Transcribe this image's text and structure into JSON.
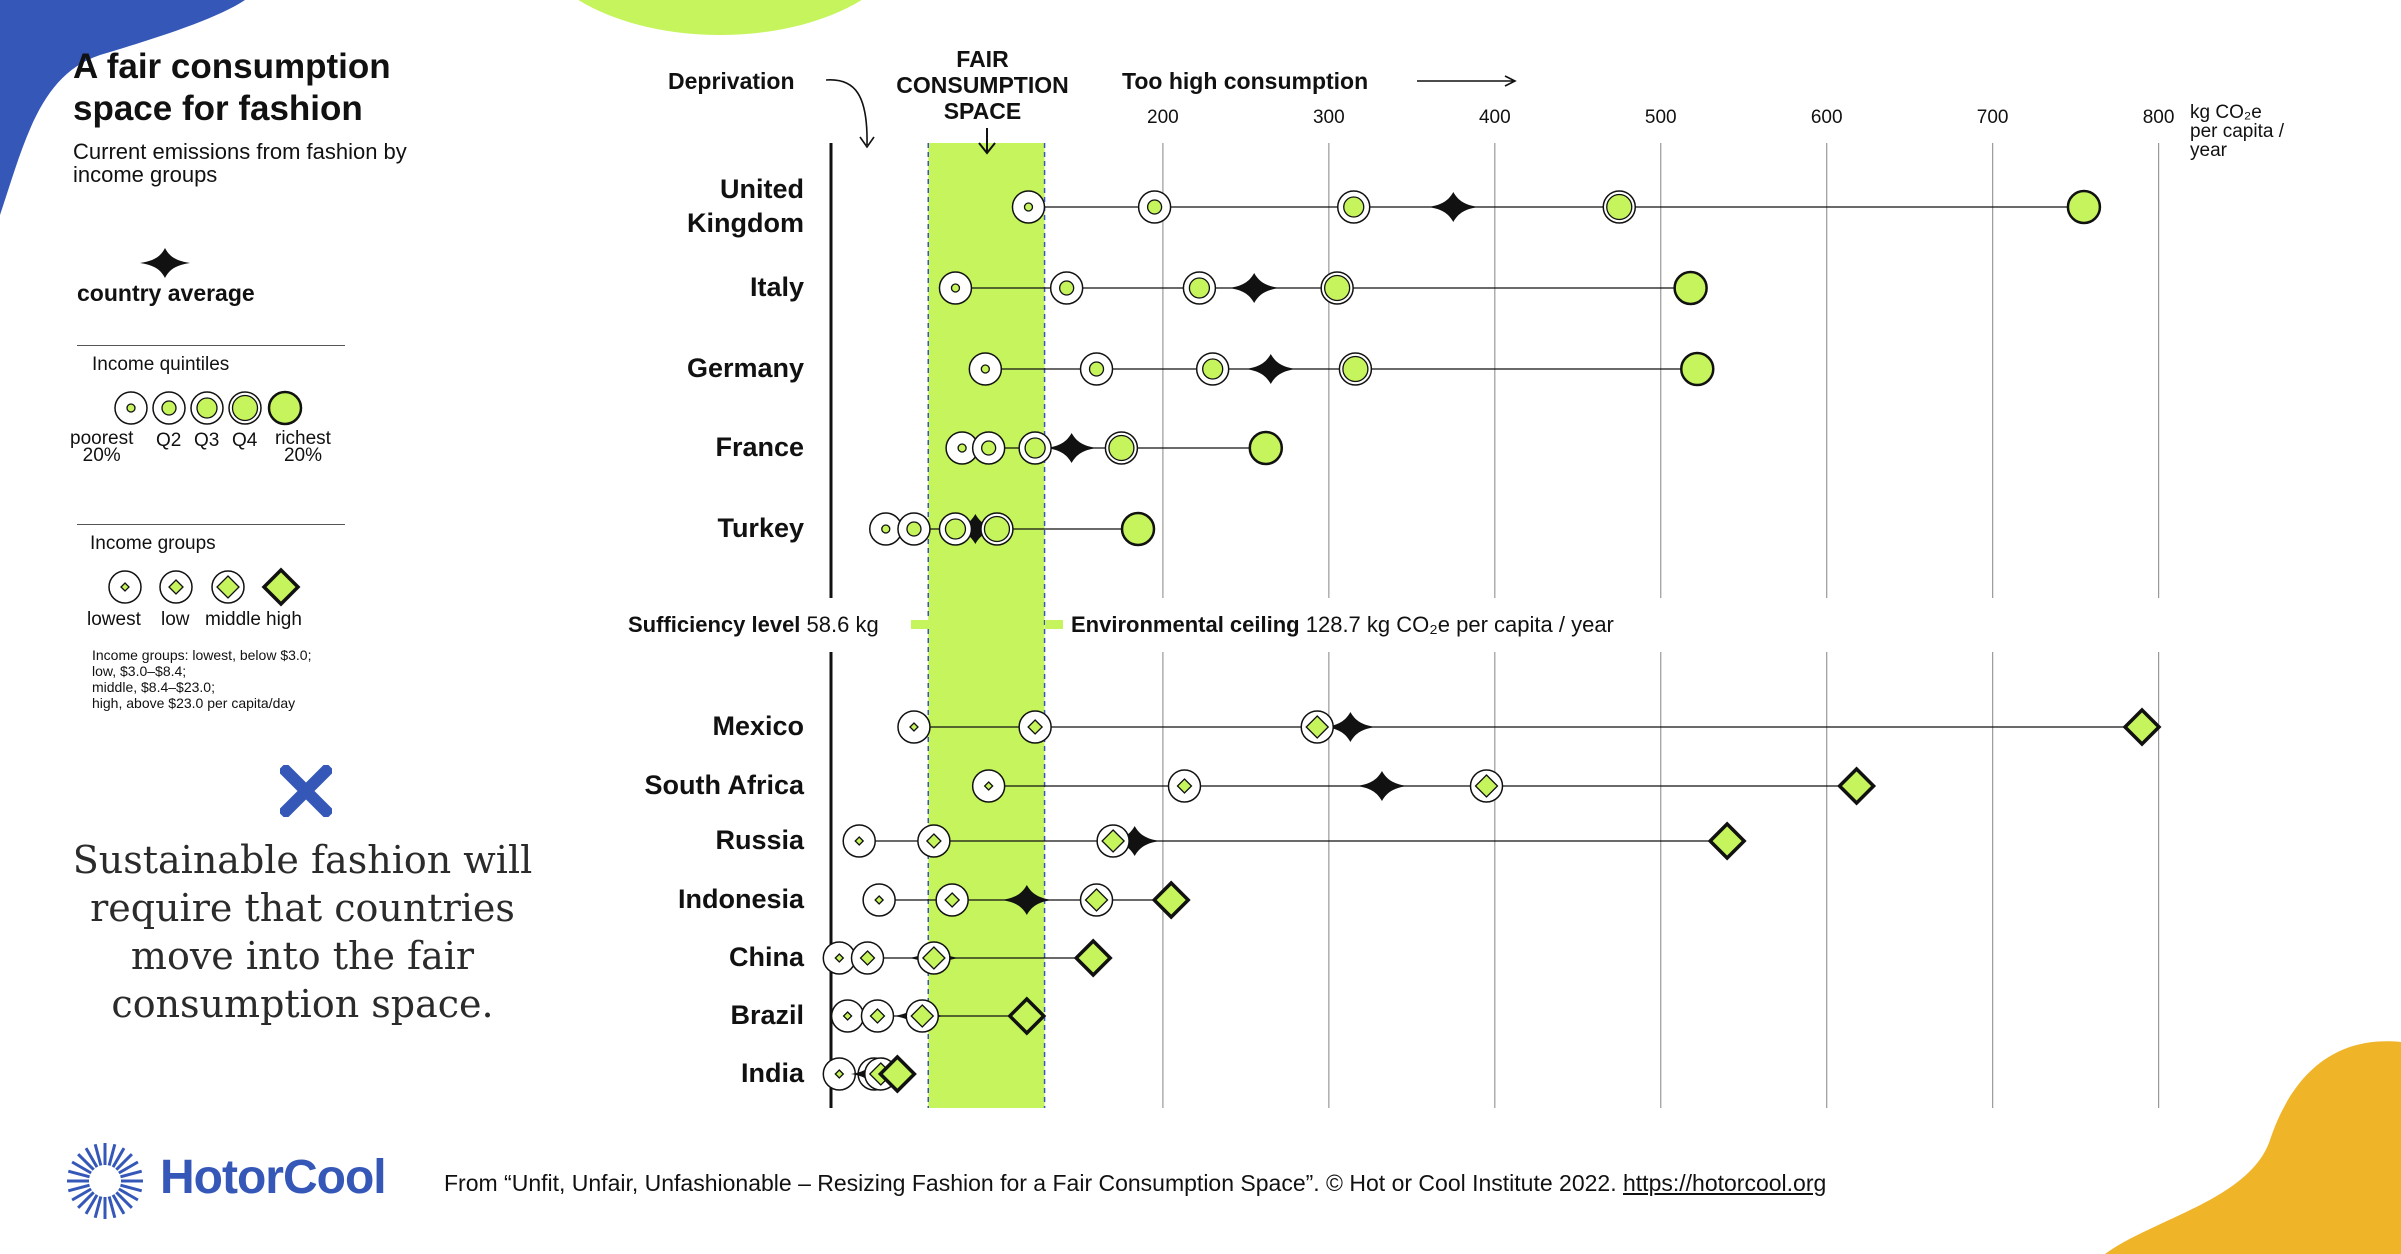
{
  "title": "A fair consumption space for fashion",
  "subtitle": "Current emissions from fashion by income groups",
  "legend": {
    "average_label": "country average",
    "quintiles_title": "Income quintiles",
    "quintile_labels": [
      "poorest\n20%",
      "Q2",
      "Q3",
      "Q4",
      "richest\n20%"
    ],
    "groups_title": "Income groups",
    "group_labels": [
      "lowest",
      "low",
      "middle",
      "high"
    ],
    "groups_note": "Income groups: lowest, below $3.0;\nlow, $3.0–$8.4;\nmiddle, $8.4–$23.0;\nhigh, above $23.0 per capita/day"
  },
  "callout": "Sustainable fashion will require that countries move into the fair consumption space.",
  "logo": "HotorCool",
  "credit": {
    "text": "From “Unfit, Unfair, Unfashionable –  Resizing Fashion for a Fair Consumption Space”. © Hot or Cool Institute 2022. ",
    "link": "https://hotorcool.org"
  },
  "header": {
    "deprivation": "Deprivation",
    "fair_space": "FAIR\nCONSUMPTION\nSPACE",
    "too_high": "Too high consumption"
  },
  "thresholds": {
    "sufficiency_label": "Sufficiency level",
    "sufficiency_value": "58.6 kg",
    "ceiling_label": "Environmental ceiling",
    "ceiling_value": "128.7 kg CO₂e per capita / year"
  },
  "colors": {
    "accent": "#c5f45c",
    "blue": "#3558b8",
    "yellow": "#f0b429",
    "dark": "#111111"
  },
  "chart_data": {
    "type": "scatter",
    "x_unit_label": "kg CO₂e\nper capita /\nyear",
    "xlim": [
      0,
      800
    ],
    "x_ticks": [
      200,
      300,
      400,
      500,
      600,
      700,
      800
    ],
    "sufficiency": 58.6,
    "ceiling": 128.7,
    "quintile_countries": [
      {
        "country": "United\nKingdom",
        "values": [
          119,
          195,
          315,
          475,
          755
        ],
        "average": 375
      },
      {
        "country": "Italy",
        "values": [
          75,
          142,
          222,
          305,
          518
        ],
        "average": 255
      },
      {
        "country": "Germany",
        "values": [
          93,
          160,
          230,
          316,
          522
        ],
        "average": 265
      },
      {
        "country": "France",
        "values": [
          79,
          95,
          123,
          175,
          262
        ],
        "average": 145
      },
      {
        "country": "Turkey",
        "values": [
          33,
          50,
          75,
          100,
          185
        ],
        "average": 87
      }
    ],
    "group_countries": [
      {
        "country": "Mexico",
        "values": [
          50,
          123,
          293,
          790
        ],
        "average": 313
      },
      {
        "country": "South Africa",
        "values": [
          95,
          213,
          395,
          618
        ],
        "average": 332
      },
      {
        "country": "Russia",
        "values": [
          17,
          62,
          170,
          540
        ],
        "average": 183
      },
      {
        "country": "Indonesia",
        "values": [
          29,
          73,
          160,
          205
        ],
        "average": 118
      },
      {
        "country": "China",
        "values": [
          5,
          22,
          62,
          158
        ],
        "average": 62
      },
      {
        "country": "Brazil",
        "values": [
          10,
          28,
          55,
          118
        ],
        "average": 53
      },
      {
        "country": "India",
        "values": [
          5,
          26,
          30,
          40
        ],
        "average": 27
      }
    ]
  }
}
